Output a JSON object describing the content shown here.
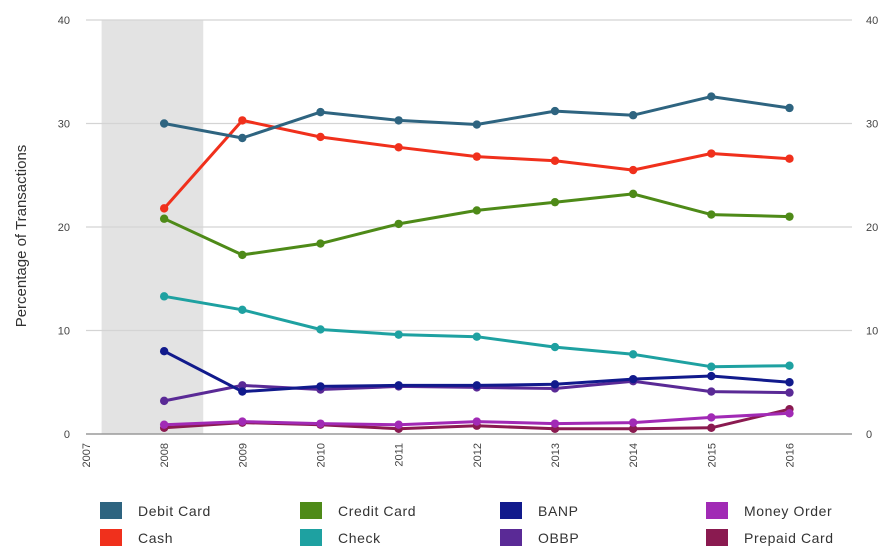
{
  "chart_data": {
    "type": "line",
    "ylabel": "Percentage of Transactions",
    "xlabel": "",
    "ylim": [
      0,
      40
    ],
    "y_ticks": [
      "0",
      "10",
      "20",
      "30",
      "40"
    ],
    "x_ticks": [
      "2007",
      "2008",
      "2009",
      "2010",
      "2011",
      "2012",
      "2013",
      "2014",
      "2015",
      "2016"
    ],
    "x": [
      2008,
      2009,
      2010,
      2011,
      2012,
      2013,
      2014,
      2015,
      2016
    ],
    "shaded_region": [
      2007.2,
      2008.5
    ],
    "grid": true,
    "legend_position": "bottom",
    "series": [
      {
        "name": "Debit Card",
        "color": "#2e6480",
        "values": [
          30.0,
          28.6,
          31.1,
          30.3,
          29.9,
          31.2,
          30.8,
          32.6,
          31.5
        ]
      },
      {
        "name": "Cash",
        "color": "#f0301c",
        "values": [
          21.8,
          30.3,
          28.7,
          27.7,
          26.8,
          26.4,
          25.5,
          27.1,
          26.6
        ]
      },
      {
        "name": "Credit Card",
        "color": "#4e8a18",
        "values": [
          20.8,
          17.3,
          18.4,
          20.3,
          21.6,
          22.4,
          23.2,
          21.2,
          21.0
        ]
      },
      {
        "name": "Check",
        "color": "#1ea1a1",
        "values": [
          13.3,
          12.0,
          10.1,
          9.6,
          9.4,
          8.4,
          7.7,
          6.5,
          6.6
        ]
      },
      {
        "name": "BANP",
        "color": "#111a8c",
        "values": [
          8.0,
          4.1,
          4.6,
          4.7,
          4.7,
          4.8,
          5.3,
          5.6,
          5.0
        ]
      },
      {
        "name": "OBBP",
        "color": "#5a2a96",
        "values": [
          3.2,
          4.7,
          4.3,
          4.6,
          4.5,
          4.4,
          5.1,
          4.1,
          4.0
        ]
      },
      {
        "name": "Money Order",
        "color": "#a12ab5",
        "values": [
          0.9,
          1.2,
          1.0,
          0.9,
          1.2,
          1.0,
          1.1,
          1.6,
          2.0
        ]
      },
      {
        "name": "Prepaid Card",
        "color": "#8a1a50",
        "values": [
          0.6,
          1.1,
          0.9,
          0.5,
          0.8,
          0.5,
          0.5,
          0.6,
          2.4
        ]
      }
    ]
  }
}
